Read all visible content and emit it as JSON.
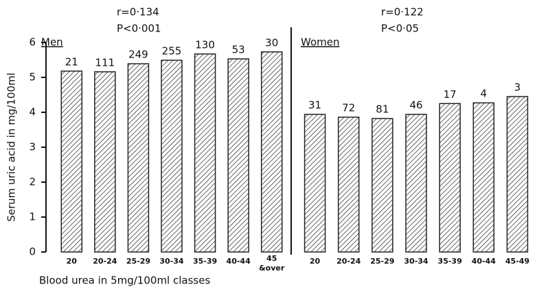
{
  "chart_data": [
    {
      "type": "bar",
      "title": "Men",
      "annotation": [
        "r=0·134",
        "P<0·001"
      ],
      "y_label": "Serum uric acid in mg/100ml",
      "x_label": "Blood urea in 5mg/100ml classes",
      "categories": [
        "20",
        "20-24",
        "25-29",
        "30-34",
        "35-39",
        "40-44",
        "45\n&over"
      ],
      "values": [
        5.18,
        5.16,
        5.39,
        5.49,
        5.67,
        5.53,
        5.73
      ],
      "n_labels": [
        21,
        111,
        249,
        255,
        130,
        53,
        30
      ],
      "ylim": [
        0,
        6
      ],
      "yticks": [
        0,
        1,
        2,
        3,
        4,
        5,
        6
      ],
      "color": "#222222"
    },
    {
      "type": "bar",
      "title": "Women",
      "annotation": [
        "r=0·122",
        "P<0·05"
      ],
      "categories": [
        "20",
        "20-24",
        "25-29",
        "30-34",
        "35-39",
        "40-44",
        "45-49"
      ],
      "values": [
        3.94,
        3.86,
        3.82,
        3.94,
        4.25,
        4.27,
        4.45
      ],
      "n_labels": [
        31,
        72,
        81,
        46,
        17,
        4,
        3
      ],
      "ylim": [
        0,
        6
      ],
      "color": "#222222"
    }
  ]
}
